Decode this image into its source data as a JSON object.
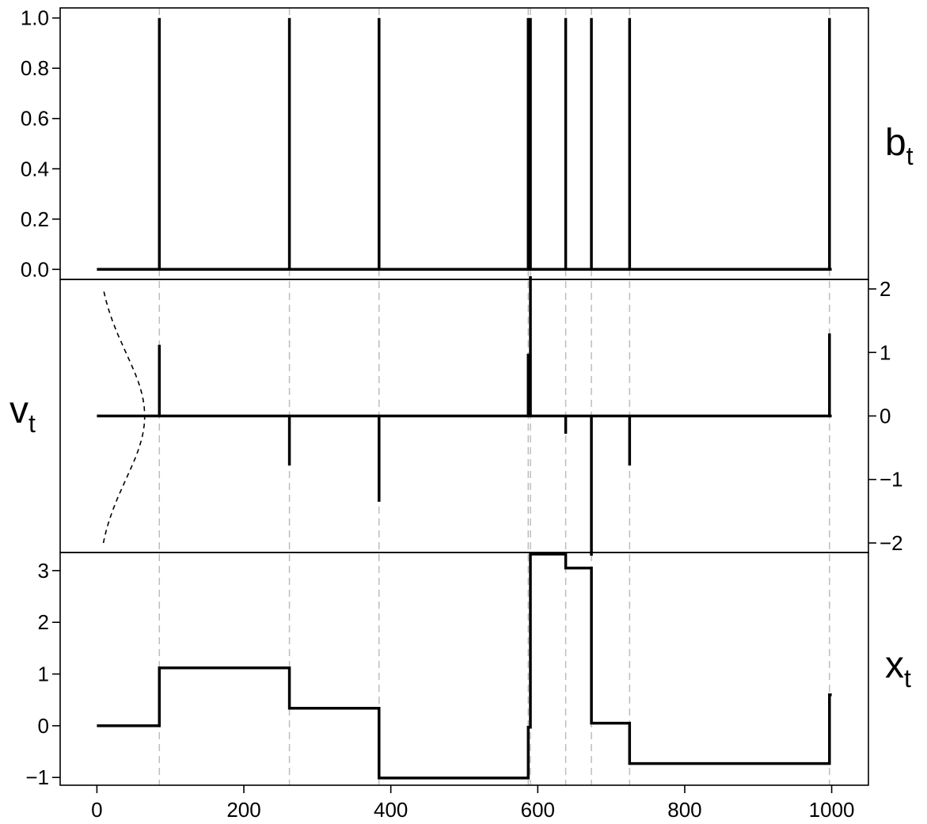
{
  "chart_data": [
    {
      "type": "line",
      "panel": "top",
      "label": "b",
      "label_subscript": "t",
      "ylim": [
        -0.04,
        1.04
      ],
      "y_ticks": [
        "0.0",
        "0.2",
        "0.4",
        "0.6",
        "0.8",
        "1.0"
      ],
      "baseline": 0,
      "spikes": [
        {
          "x": 85,
          "y": 1.0
        },
        {
          "x": 262,
          "y": 1.0
        },
        {
          "x": 384,
          "y": 1.0
        },
        {
          "x": 587,
          "y": 1.0
        },
        {
          "x": 590,
          "y": 1.0
        },
        {
          "x": 638,
          "y": 1.0
        },
        {
          "x": 673,
          "y": 1.0
        },
        {
          "x": 725,
          "y": 1.0
        },
        {
          "x": 997,
          "y": 1.0
        }
      ]
    },
    {
      "type": "line",
      "panel": "middle",
      "label": "v",
      "label_subscript": "t",
      "ylim": [
        -2.15,
        2.15
      ],
      "y_ticks": [
        "2",
        "1",
        "0",
        "−1",
        "−2"
      ],
      "y_tick_values": [
        2,
        1,
        0,
        -1,
        -2
      ],
      "baseline": 0,
      "spikes": [
        {
          "x": 85,
          "y": 1.12
        },
        {
          "x": 262,
          "y": -0.78
        },
        {
          "x": 384,
          "y": -1.35
        },
        {
          "x": 587,
          "y": 0.98
        },
        {
          "x": 590,
          "y": 2.2
        },
        {
          "x": 638,
          "y": -0.28
        },
        {
          "x": 673,
          "y": -2.2
        },
        {
          "x": 725,
          "y": -0.78
        },
        {
          "x": 997,
          "y": 1.3
        }
      ],
      "density_curve": "normal",
      "density_style": "dashed"
    },
    {
      "type": "line",
      "panel": "bottom",
      "label": "x",
      "label_subscript": "t",
      "ylim": [
        -1.15,
        3.35
      ],
      "y_ticks": [
        "−1",
        "0",
        "1",
        "2",
        "3"
      ],
      "y_tick_values": [
        -1,
        0,
        1,
        2,
        3
      ],
      "x_ticks": [
        "0",
        "200",
        "400",
        "600",
        "800",
        "1000"
      ],
      "x_tick_values": [
        0,
        200,
        400,
        600,
        800,
        1000
      ],
      "xlim": [
        -50,
        1050
      ],
      "step_series": [
        {
          "x": 0,
          "y": 0
        },
        {
          "x": 85,
          "y": 0
        },
        {
          "x": 85,
          "y": 1.12
        },
        {
          "x": 262,
          "y": 1.12
        },
        {
          "x": 262,
          "y": 0.34
        },
        {
          "x": 384,
          "y": 0.34
        },
        {
          "x": 384,
          "y": -1.01
        },
        {
          "x": 587,
          "y": -1.01
        },
        {
          "x": 587,
          "y": -0.03
        },
        {
          "x": 590,
          "y": -0.03
        },
        {
          "x": 590,
          "y": 3.32
        },
        {
          "x": 638,
          "y": 3.32
        },
        {
          "x": 638,
          "y": 3.05
        },
        {
          "x": 673,
          "y": 3.05
        },
        {
          "x": 673,
          "y": 0.05
        },
        {
          "x": 725,
          "y": 0.05
        },
        {
          "x": 725,
          "y": -0.73
        },
        {
          "x": 997,
          "y": -0.73
        },
        {
          "x": 997,
          "y": 0.6
        },
        {
          "x": 1000,
          "y": 0.6
        }
      ]
    }
  ],
  "break_points": [
    85,
    262,
    384,
    587,
    590,
    638,
    673,
    725,
    997
  ]
}
